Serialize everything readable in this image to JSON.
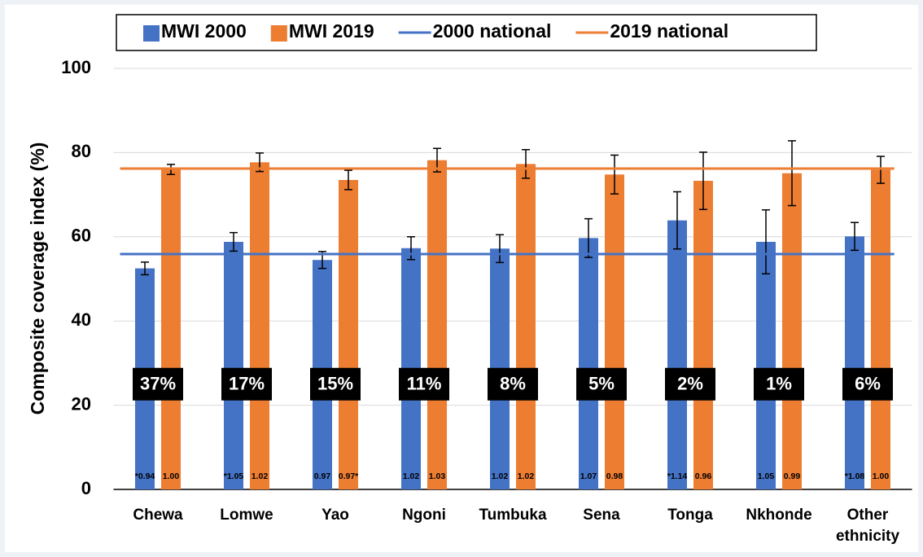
{
  "chart_data": {
    "type": "bar",
    "y_label": "Composite coverage index (%)",
    "categories": [
      "Chewa",
      "Lomwe",
      "Yao",
      "Ngoni",
      "Tumbuka",
      "Sena",
      "Tonga",
      "Nkhonde",
      "Other ethnicity"
    ],
    "series": [
      {
        "name": "MWI 2000",
        "color": "#4472c4",
        "values": [
          52.5,
          58.8,
          54.5,
          57.3,
          57.2,
          59.7,
          63.9,
          58.8,
          60.1
        ],
        "errors": [
          1.5,
          2.2,
          2.0,
          2.7,
          3.3,
          4.6,
          6.8,
          7.6,
          3.3
        ],
        "ratio_labels": [
          "*0.94",
          "*1.05",
          "0.97",
          "1.02",
          "1.02",
          "1.07",
          "*1.14",
          "1.05",
          "*1.08"
        ]
      },
      {
        "name": "MWI 2019",
        "color": "#ed7d31",
        "values": [
          76.0,
          77.7,
          73.5,
          78.2,
          77.3,
          74.8,
          73.3,
          75.1,
          75.9
        ],
        "errors": [
          1.2,
          2.2,
          2.3,
          2.8,
          3.4,
          4.6,
          6.8,
          7.7,
          3.2
        ],
        "ratio_labels": [
          "1.00",
          "1.02",
          "0.97*",
          "1.03",
          "1.02",
          "0.98",
          "0.96",
          "0.99",
          "1.00"
        ]
      }
    ],
    "reference_lines": [
      {
        "name": "2000 national",
        "color": "#4472c4",
        "value": 55.9
      },
      {
        "name": "2019 national",
        "color": "#ed7d31",
        "value": 76.2
      }
    ],
    "annotations": [
      "37%",
      "17%",
      "15%",
      "11%",
      "8%",
      "5%",
      "2%",
      "1%",
      "6%"
    ],
    "annotation_y": 25,
    "ylim": [
      0,
      100
    ],
    "yticks": [
      0,
      20,
      40,
      60,
      80,
      100
    ],
    "grid": true,
    "legend": "top"
  }
}
